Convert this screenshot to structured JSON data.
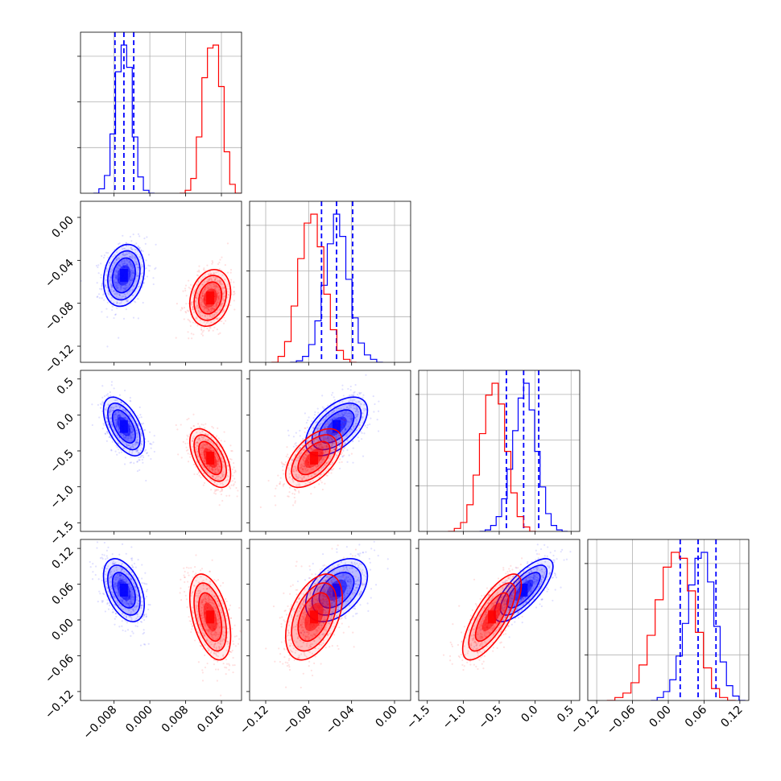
{
  "chart_data": {
    "type": "corner",
    "colors": {
      "blue": "#0000ff",
      "red": "#ff0000"
    },
    "grid": true,
    "series": [
      {
        "color": "blue",
        "quantiles": [
          [
            -0.0078,
            -0.0058,
            -0.0036
          ],
          [
            -0.068,
            -0.054,
            -0.039
          ],
          [
            -0.4,
            -0.16,
            0.05
          ],
          [
            0.02,
            0.05,
            0.08
          ]
        ],
        "centers": [
          -0.0058,
          -0.054,
          -0.16,
          0.05
        ],
        "histograms": [
          [
            0,
            0.03,
            0.12,
            0.4,
            0.82,
            1.0,
            0.85,
            0.38,
            0.11,
            0.02,
            0
          ],
          [
            0,
            0.01,
            0.04,
            0.12,
            0.28,
            0.52,
            0.8,
            1.0,
            0.85,
            0.56,
            0.3,
            0.13,
            0.05,
            0.02,
            0
          ],
          [
            0,
            0.01,
            0.04,
            0.1,
            0.22,
            0.42,
            0.68,
            0.9,
            1.0,
            0.82,
            0.54,
            0.3,
            0.12,
            0.04,
            0.01,
            0
          ],
          [
            0,
            0.02,
            0.06,
            0.14,
            0.3,
            0.52,
            0.78,
            0.96,
            1.0,
            0.8,
            0.5,
            0.26,
            0.1,
            0.03,
            0
          ]
        ]
      },
      {
        "color": "red",
        "centers": [
          0.0135,
          -0.075,
          -0.6,
          0.005
        ],
        "histograms": [
          [
            0,
            0.02,
            0.1,
            0.38,
            0.78,
            0.98,
            1.0,
            0.72,
            0.28,
            0.06,
            0
          ],
          [
            0,
            0.04,
            0.14,
            0.38,
            0.7,
            0.94,
            1.0,
            0.78,
            0.46,
            0.22,
            0.08,
            0.02,
            0
          ],
          [
            0,
            0.02,
            0.06,
            0.18,
            0.38,
            0.66,
            0.92,
            1.0,
            0.86,
            0.54,
            0.26,
            0.1,
            0.03,
            0
          ],
          [
            0,
            0.02,
            0.05,
            0.12,
            0.24,
            0.44,
            0.68,
            0.9,
            1.0,
            0.96,
            0.74,
            0.46,
            0.22,
            0.08,
            0.02,
            0
          ]
        ]
      }
    ],
    "covariance_orientation": [
      [
        0,
        0.2,
        -0.55,
        -0.45
      ],
      [
        0.2,
        0,
        0.55,
        0.45
      ],
      [
        -0.55,
        0.55,
        0,
        0.75
      ],
      [
        -0.45,
        0.45,
        0.75,
        0
      ]
    ],
    "params": [
      {
        "range": [
          -0.0155,
          0.0205
        ],
        "ticks": [
          -0.008,
          0.0,
          0.008,
          0.016
        ],
        "tick_labels": [
          "−0.008",
          "0.000",
          "0.008",
          "0.016"
        ],
        "sigma_blue": 0.0019,
        "sigma_red": 0.0019
      },
      {
        "range": [
          -0.135,
          0.015
        ],
        "ticks": [
          -0.12,
          -0.08,
          -0.04,
          0.0
        ],
        "tick_labels": [
          "−0.12",
          "−0.08",
          "−0.04",
          "0.00"
        ],
        "sigma_blue": 0.012,
        "sigma_red": 0.011
      },
      {
        "range": [
          -1.62,
          0.62
        ],
        "ticks": [
          -1.5,
          -1.0,
          -0.5,
          0.0,
          0.5
        ],
        "tick_labels": [
          "−1.5",
          "−1.0",
          "−0.5",
          "0.0",
          "0.5"
        ],
        "sigma_blue": 0.17,
        "sigma_red": 0.17
      },
      {
        "range": [
          -0.135,
          0.135
        ],
        "ticks": [
          -0.12,
          -0.06,
          0.0,
          0.06,
          0.12
        ],
        "tick_labels": [
          "−0.12",
          "−0.06",
          "0.00",
          "0.06",
          "0.12"
        ],
        "sigma_blue": 0.022,
        "sigma_red": 0.03
      }
    ]
  }
}
